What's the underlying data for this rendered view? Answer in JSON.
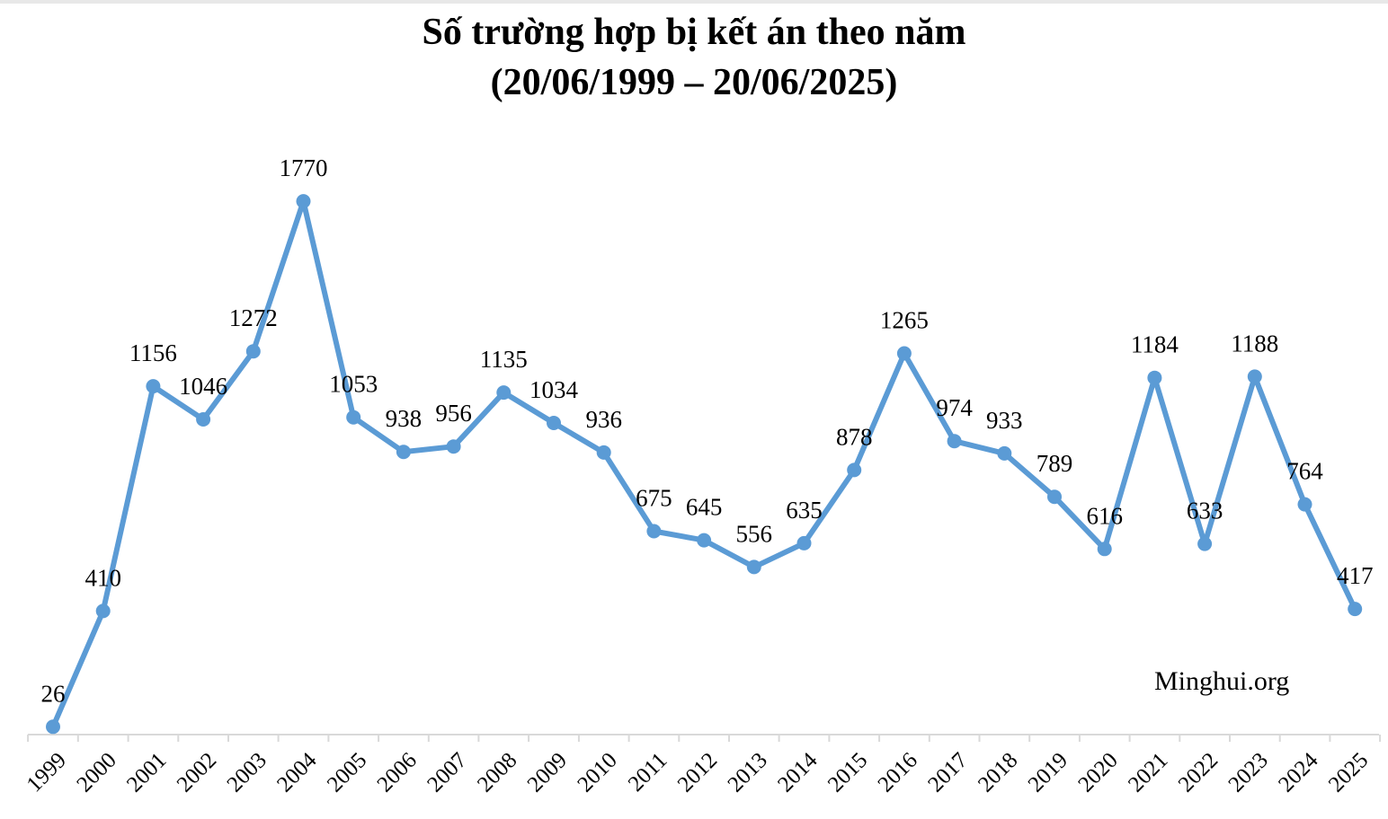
{
  "title_line1": "Số trường hợp bị kết án theo năm",
  "title_line2": "(20/06/1999 – 20/06/2025)",
  "watermark": "Minghui.org",
  "chart_data": {
    "type": "line",
    "title": "Số trường hợp bị kết án theo năm (20/06/1999 – 20/06/2025)",
    "xlabel": "",
    "ylabel": "",
    "categories": [
      "1999",
      "2000",
      "2001",
      "2002",
      "2003",
      "2004",
      "2005",
      "2006",
      "2007",
      "2008",
      "2009",
      "2010",
      "2011",
      "2012",
      "2013",
      "2014",
      "2015",
      "2016",
      "2017",
      "2018",
      "2019",
      "2020",
      "2021",
      "2022",
      "2023",
      "2024",
      "2025"
    ],
    "series": [
      {
        "values": [
          26,
          410,
          1156,
          1046,
          1272,
          1770,
          1053,
          938,
          956,
          1135,
          1034,
          936,
          675,
          645,
          556,
          635,
          878,
          1265,
          974,
          933,
          789,
          616,
          1184,
          633,
          1188,
          764,
          417
        ],
        "color": "#5b9bd5"
      }
    ],
    "ylim": [
      0,
      1800
    ],
    "grid": false,
    "legend": "none",
    "data_labels": true
  }
}
